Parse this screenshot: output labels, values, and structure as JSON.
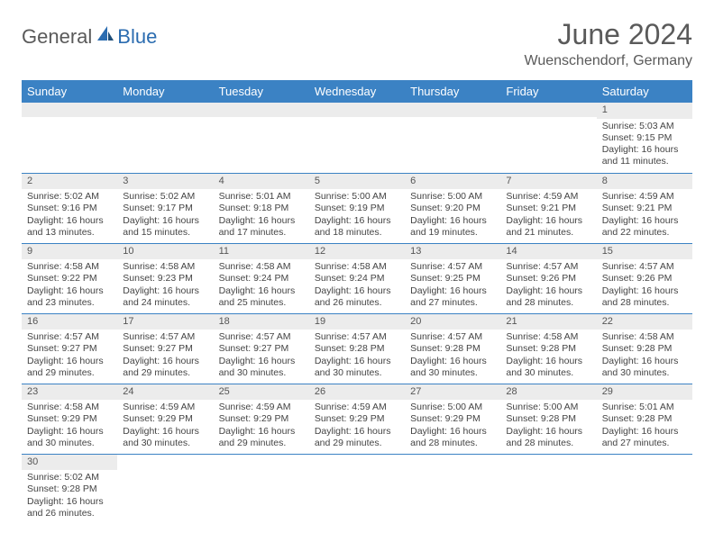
{
  "brand": {
    "general": "General",
    "blue": "Blue"
  },
  "title": "June 2024",
  "location": "Wuenschendorf, Germany",
  "colors": {
    "header_bg": "#3b82c4",
    "header_text": "#ffffff",
    "daynum_bg": "#ececec",
    "cell_border": "#3b82c4",
    "title_color": "#5a5a5a",
    "logo_blue": "#2b6cb0"
  },
  "font": {
    "title_size": 32,
    "location_size": 16,
    "header_size": 13,
    "cell_size": 10.5
  },
  "weekdays": [
    "Sunday",
    "Monday",
    "Tuesday",
    "Wednesday",
    "Thursday",
    "Friday",
    "Saturday"
  ],
  "weeks": [
    [
      null,
      null,
      null,
      null,
      null,
      null,
      {
        "n": "1",
        "sunrise": "Sunrise: 5:03 AM",
        "sunset": "Sunset: 9:15 PM",
        "daylight": "Daylight: 16 hours and 11 minutes."
      }
    ],
    [
      {
        "n": "2",
        "sunrise": "Sunrise: 5:02 AM",
        "sunset": "Sunset: 9:16 PM",
        "daylight": "Daylight: 16 hours and 13 minutes."
      },
      {
        "n": "3",
        "sunrise": "Sunrise: 5:02 AM",
        "sunset": "Sunset: 9:17 PM",
        "daylight": "Daylight: 16 hours and 15 minutes."
      },
      {
        "n": "4",
        "sunrise": "Sunrise: 5:01 AM",
        "sunset": "Sunset: 9:18 PM",
        "daylight": "Daylight: 16 hours and 17 minutes."
      },
      {
        "n": "5",
        "sunrise": "Sunrise: 5:00 AM",
        "sunset": "Sunset: 9:19 PM",
        "daylight": "Daylight: 16 hours and 18 minutes."
      },
      {
        "n": "6",
        "sunrise": "Sunrise: 5:00 AM",
        "sunset": "Sunset: 9:20 PM",
        "daylight": "Daylight: 16 hours and 19 minutes."
      },
      {
        "n": "7",
        "sunrise": "Sunrise: 4:59 AM",
        "sunset": "Sunset: 9:21 PM",
        "daylight": "Daylight: 16 hours and 21 minutes."
      },
      {
        "n": "8",
        "sunrise": "Sunrise: 4:59 AM",
        "sunset": "Sunset: 9:21 PM",
        "daylight": "Daylight: 16 hours and 22 minutes."
      }
    ],
    [
      {
        "n": "9",
        "sunrise": "Sunrise: 4:58 AM",
        "sunset": "Sunset: 9:22 PM",
        "daylight": "Daylight: 16 hours and 23 minutes."
      },
      {
        "n": "10",
        "sunrise": "Sunrise: 4:58 AM",
        "sunset": "Sunset: 9:23 PM",
        "daylight": "Daylight: 16 hours and 24 minutes."
      },
      {
        "n": "11",
        "sunrise": "Sunrise: 4:58 AM",
        "sunset": "Sunset: 9:24 PM",
        "daylight": "Daylight: 16 hours and 25 minutes."
      },
      {
        "n": "12",
        "sunrise": "Sunrise: 4:58 AM",
        "sunset": "Sunset: 9:24 PM",
        "daylight": "Daylight: 16 hours and 26 minutes."
      },
      {
        "n": "13",
        "sunrise": "Sunrise: 4:57 AM",
        "sunset": "Sunset: 9:25 PM",
        "daylight": "Daylight: 16 hours and 27 minutes."
      },
      {
        "n": "14",
        "sunrise": "Sunrise: 4:57 AM",
        "sunset": "Sunset: 9:26 PM",
        "daylight": "Daylight: 16 hours and 28 minutes."
      },
      {
        "n": "15",
        "sunrise": "Sunrise: 4:57 AM",
        "sunset": "Sunset: 9:26 PM",
        "daylight": "Daylight: 16 hours and 28 minutes."
      }
    ],
    [
      {
        "n": "16",
        "sunrise": "Sunrise: 4:57 AM",
        "sunset": "Sunset: 9:27 PM",
        "daylight": "Daylight: 16 hours and 29 minutes."
      },
      {
        "n": "17",
        "sunrise": "Sunrise: 4:57 AM",
        "sunset": "Sunset: 9:27 PM",
        "daylight": "Daylight: 16 hours and 29 minutes."
      },
      {
        "n": "18",
        "sunrise": "Sunrise: 4:57 AM",
        "sunset": "Sunset: 9:27 PM",
        "daylight": "Daylight: 16 hours and 30 minutes."
      },
      {
        "n": "19",
        "sunrise": "Sunrise: 4:57 AM",
        "sunset": "Sunset: 9:28 PM",
        "daylight": "Daylight: 16 hours and 30 minutes."
      },
      {
        "n": "20",
        "sunrise": "Sunrise: 4:57 AM",
        "sunset": "Sunset: 9:28 PM",
        "daylight": "Daylight: 16 hours and 30 minutes."
      },
      {
        "n": "21",
        "sunrise": "Sunrise: 4:58 AM",
        "sunset": "Sunset: 9:28 PM",
        "daylight": "Daylight: 16 hours and 30 minutes."
      },
      {
        "n": "22",
        "sunrise": "Sunrise: 4:58 AM",
        "sunset": "Sunset: 9:28 PM",
        "daylight": "Daylight: 16 hours and 30 minutes."
      }
    ],
    [
      {
        "n": "23",
        "sunrise": "Sunrise: 4:58 AM",
        "sunset": "Sunset: 9:29 PM",
        "daylight": "Daylight: 16 hours and 30 minutes."
      },
      {
        "n": "24",
        "sunrise": "Sunrise: 4:59 AM",
        "sunset": "Sunset: 9:29 PM",
        "daylight": "Daylight: 16 hours and 30 minutes."
      },
      {
        "n": "25",
        "sunrise": "Sunrise: 4:59 AM",
        "sunset": "Sunset: 9:29 PM",
        "daylight": "Daylight: 16 hours and 29 minutes."
      },
      {
        "n": "26",
        "sunrise": "Sunrise: 4:59 AM",
        "sunset": "Sunset: 9:29 PM",
        "daylight": "Daylight: 16 hours and 29 minutes."
      },
      {
        "n": "27",
        "sunrise": "Sunrise: 5:00 AM",
        "sunset": "Sunset: 9:29 PM",
        "daylight": "Daylight: 16 hours and 28 minutes."
      },
      {
        "n": "28",
        "sunrise": "Sunrise: 5:00 AM",
        "sunset": "Sunset: 9:28 PM",
        "daylight": "Daylight: 16 hours and 28 minutes."
      },
      {
        "n": "29",
        "sunrise": "Sunrise: 5:01 AM",
        "sunset": "Sunset: 9:28 PM",
        "daylight": "Daylight: 16 hours and 27 minutes."
      }
    ],
    [
      {
        "n": "30",
        "sunrise": "Sunrise: 5:02 AM",
        "sunset": "Sunset: 9:28 PM",
        "daylight": "Daylight: 16 hours and 26 minutes."
      },
      null,
      null,
      null,
      null,
      null,
      null
    ]
  ]
}
